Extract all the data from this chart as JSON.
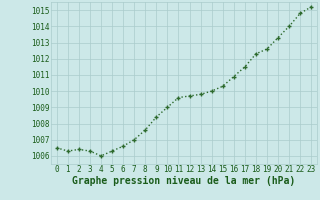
{
  "x": [
    0,
    1,
    2,
    3,
    4,
    5,
    6,
    7,
    8,
    9,
    10,
    11,
    12,
    13,
    14,
    15,
    16,
    17,
    18,
    19,
    20,
    21,
    22,
    23
  ],
  "y": [
    1006.5,
    1006.3,
    1006.4,
    1006.3,
    1006.0,
    1006.3,
    1006.6,
    1007.0,
    1007.6,
    1008.4,
    1009.0,
    1009.6,
    1009.7,
    1009.8,
    1010.0,
    1010.3,
    1010.9,
    1011.5,
    1012.3,
    1012.6,
    1013.3,
    1014.0,
    1014.8,
    1015.2
  ],
  "line_color": "#2d6a2d",
  "marker": "+",
  "marker_size": 3,
  "marker_linewidth": 1.0,
  "line_style": "dotted",
  "line_width": 1.0,
  "bg_color": "#cce8e8",
  "grid_color": "#aacccc",
  "xlabel": "Graphe pression niveau de la mer (hPa)",
  "xlabel_fontsize": 7,
  "xlabel_color": "#1a5c1a",
  "tick_color": "#1a5c1a",
  "tick_fontsize": 5.5,
  "ylim": [
    1005.5,
    1015.5
  ],
  "xlim": [
    -0.5,
    23.5
  ],
  "yticks": [
    1006,
    1007,
    1008,
    1009,
    1010,
    1011,
    1012,
    1013,
    1014,
    1015
  ],
  "xticks": [
    0,
    1,
    2,
    3,
    4,
    5,
    6,
    7,
    8,
    9,
    10,
    11,
    12,
    13,
    14,
    15,
    16,
    17,
    18,
    19,
    20,
    21,
    22,
    23
  ]
}
